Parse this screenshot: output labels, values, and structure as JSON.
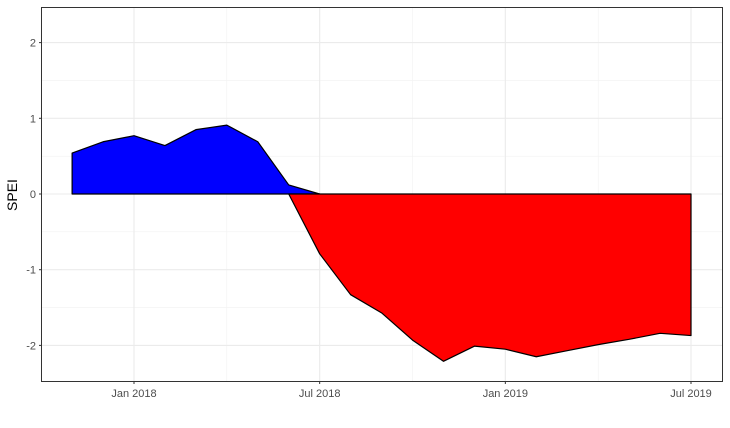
{
  "chart_data": {
    "type": "area",
    "title": "",
    "xlabel": "",
    "ylabel": "SPEI",
    "ylim": [
      -2.45,
      2.45
    ],
    "yticks": [
      -2,
      -1,
      0,
      1,
      2
    ],
    "ytick_labels": [
      "-2",
      "-1",
      "0",
      "1",
      "2"
    ],
    "xticks": [
      "2018-01",
      "2018-07",
      "2019-01",
      "2019-07"
    ],
    "xtick_labels": [
      "Jan 2018",
      "Jul 2018",
      "Jan 2019",
      "Jul 2019"
    ],
    "grid": true,
    "x": [
      "2017-11",
      "2017-12",
      "2018-01",
      "2018-02",
      "2018-03",
      "2018-04",
      "2018-05",
      "2018-06",
      "2018-07",
      "2018-08",
      "2018-09",
      "2018-10",
      "2018-11",
      "2018-12",
      "2019-01",
      "2019-02",
      "2019-03",
      "2019-04",
      "2019-05",
      "2019-06",
      "2019-07"
    ],
    "values": [
      0.54,
      0.69,
      0.77,
      0.64,
      0.85,
      0.91,
      0.69,
      0.12,
      -0.79,
      -1.33,
      -1.57,
      -1.93,
      -2.21,
      -2.01,
      -2.05,
      -2.15,
      -2.07,
      -1.99,
      -1.92,
      -1.84,
      -1.87
    ],
    "positive_color": "#0000FF",
    "negative_color": "#FF0000"
  }
}
